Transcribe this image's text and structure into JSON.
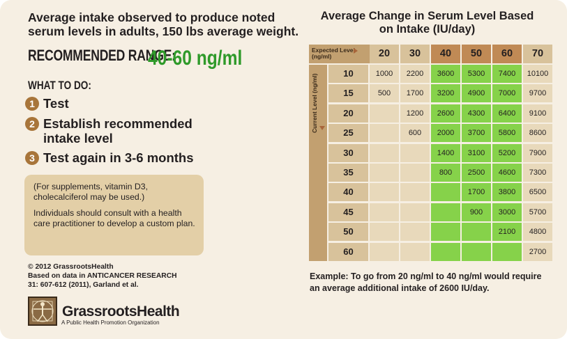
{
  "intro": {
    "line1": "Average intake observed to produce noted",
    "line2": "serum levels in adults, 150 lbs average weight."
  },
  "range": {
    "label": "RECOMMENDED RANGE:",
    "value": "40-60 ng/ml"
  },
  "todo": {
    "title": "WHAT TO DO:",
    "steps": [
      {
        "num": "1",
        "text": "Test"
      },
      {
        "num": "2",
        "text": "Establish recommended intake level"
      },
      {
        "num": "3",
        "text": "Test again in 3-6 months"
      }
    ]
  },
  "note": {
    "p1": "(For supplements, vitamin D3, cholecalciferol may be used.)",
    "p2": "Individuals should consult with a health care practitioner to develop a custom plan."
  },
  "credits": {
    "line1": "© 2012 GrassrootsHealth",
    "line2": "Based on data in ANTICANCER RESEARCH",
    "line3": "31: 607-612 (2011), Garland et al."
  },
  "logo": {
    "name": "GrassrootsHealth",
    "tagline": "A Public Health Promotion Organization"
  },
  "table": {
    "title_line1": "Average Change in Serum Level Based",
    "title_line2": "on Intake (IU/day)",
    "corner_label_1": "Expected Level",
    "corner_label_2": "(ng/ml)",
    "side_label_1": "Current Level",
    "side_label_2": "(ng/ml)",
    "columns": [
      "20",
      "30",
      "40",
      "50",
      "60",
      "70"
    ],
    "rows": [
      {
        "level": "10",
        "values": [
          "1000",
          "2200",
          "3600",
          "5300",
          "7400",
          "10100"
        ]
      },
      {
        "level": "15",
        "values": [
          "500",
          "1700",
          "3200",
          "4900",
          "7000",
          "9700"
        ]
      },
      {
        "level": "20",
        "values": [
          "",
          "1200",
          "2600",
          "4300",
          "6400",
          "9100"
        ]
      },
      {
        "level": "25",
        "values": [
          "",
          "600",
          "2000",
          "3700",
          "5800",
          "8600"
        ]
      },
      {
        "level": "30",
        "values": [
          "",
          "",
          "1400",
          "3100",
          "5200",
          "7900"
        ]
      },
      {
        "level": "35",
        "values": [
          "",
          "",
          "800",
          "2500",
          "4600",
          "7300"
        ]
      },
      {
        "level": "40",
        "values": [
          "",
          "",
          "",
          "1700",
          "3800",
          "6500"
        ]
      },
      {
        "level": "45",
        "values": [
          "",
          "",
          "",
          "900",
          "3000",
          "5700"
        ]
      },
      {
        "level": "50",
        "values": [
          "",
          "",
          "",
          "",
          "2100",
          "4800"
        ]
      },
      {
        "level": "60",
        "values": [
          "",
          "",
          "",
          "",
          "",
          "2700"
        ]
      }
    ],
    "colors": {
      "header_normal": "#d8c29b",
      "header_highlight": "#c08a55",
      "body_normal": "#e8d9bb",
      "body_highlight": "#86d24a",
      "row_header": "#d8c29b"
    },
    "highlight_columns": [
      "40",
      "50",
      "60"
    ]
  },
  "example": {
    "text": "Example: To go from 20 ng/ml to 40 ng/ml would require an average additional intake of 2600 IU/day."
  }
}
